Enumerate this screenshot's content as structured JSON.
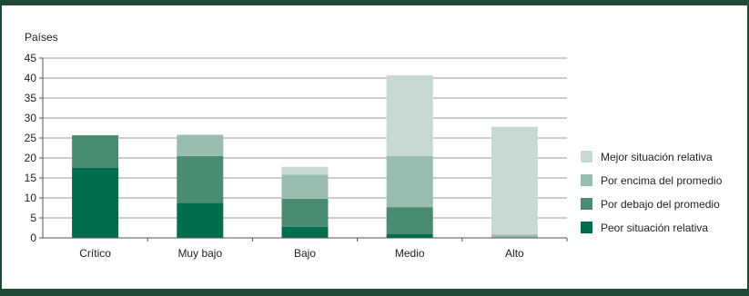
{
  "chart_data": {
    "type": "bar",
    "stacked": true,
    "ylabel": "Países",
    "xlabel": "",
    "title": "",
    "categories": [
      "Crítico",
      "Muy bajo",
      "Bajo",
      "Medio",
      "Alto"
    ],
    "ylim": [
      0,
      45
    ],
    "yticks": [
      0,
      5,
      10,
      15,
      20,
      25,
      30,
      35,
      40,
      45
    ],
    "grid": true,
    "legend_position": "right",
    "series": [
      {
        "name": "Peor situación relativa",
        "color": "#006e4e",
        "values": [
          17.5,
          8.8,
          2.8,
          1.0,
          0
        ]
      },
      {
        "name": "Por debajo del promedio",
        "color": "#4a8c72",
        "values": [
          8.2,
          11.7,
          7.0,
          6.7,
          0
        ]
      },
      {
        "name": "Por encima del promedio",
        "color": "#98bcad",
        "values": [
          0,
          5.3,
          6.0,
          12.8,
          0.8
        ]
      },
      {
        "name": "Mejor situación relativa",
        "color": "#c6dad2",
        "values": [
          0,
          0,
          2.0,
          20.2,
          27.0
        ]
      }
    ]
  }
}
